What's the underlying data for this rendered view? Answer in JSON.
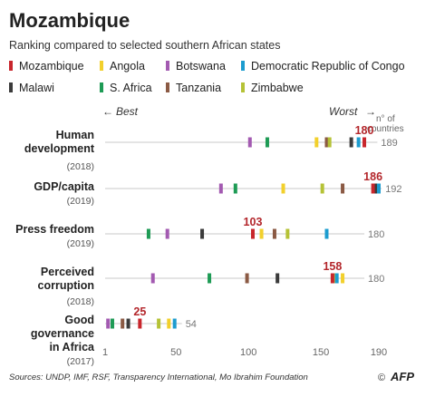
{
  "title": "Mozambique",
  "subtitle": "Ranking compared to selected southern African states",
  "source": "Sources: UNDP, IMF, RSF, Transparency International, Mo Ibrahim Foundation",
  "credit": "AFP",
  "axis_labels": {
    "best": "Best",
    "worst": "Worst",
    "count_label_1": "n° of",
    "count_label_2": "countries"
  },
  "chart_data": {
    "type": "scatter",
    "title": "Mozambique",
    "subtitle": "Ranking compared to selected southern African states",
    "x_ticks": [
      "1",
      "50",
      "100",
      "150",
      "190"
    ],
    "xlim": [
      1,
      190
    ],
    "grid": false,
    "legend_position": "top",
    "countries": [
      {
        "name": "Mozambique",
        "color": "#c8262c"
      },
      {
        "name": "Angola",
        "color": "#f2d02c"
      },
      {
        "name": "Botswana",
        "color": "#a35ab1"
      },
      {
        "name": "Democratic Republic of Congo",
        "color": "#1c9ccf"
      },
      {
        "name": "Malawi",
        "color": "#3b3b3b"
      },
      {
        "name": "S. Africa",
        "color": "#1e9b55"
      },
      {
        "name": "Tanzania",
        "color": "#8b5a44"
      },
      {
        "name": "Zimbabwe",
        "color": "#b5c236"
      }
    ],
    "indicators": [
      {
        "label_lines": [
          "Human",
          "development"
        ],
        "year": "(2018)",
        "total": 189,
        "highlight": "180",
        "ranks": {
          "Mozambique": 180,
          "Angola": 147,
          "Botswana": 101,
          "Democratic Republic of Congo": 176,
          "Malawi": 171,
          "S. Africa": 113,
          "Tanzania": 154,
          "Zimbabwe": 156
        }
      },
      {
        "label_lines": [
          "GDP/capita"
        ],
        "year": "(2019)",
        "total": 192,
        "highlight": "186",
        "ranks": {
          "Mozambique": 186,
          "Angola": 124,
          "Botswana": 81,
          "Democratic Republic of Congo": 190,
          "Malawi": 188,
          "S. Africa": 91,
          "Tanzania": 165,
          "Zimbabwe": 151
        }
      },
      {
        "label_lines": [
          "Press freedom"
        ],
        "year": "(2019)",
        "total": 180,
        "highlight": "103",
        "ranks": {
          "Mozambique": 103,
          "Angola": 109,
          "Botswana": 44,
          "Democratic Republic of Congo": 154,
          "Malawi": 68,
          "S. Africa": 31,
          "Tanzania": 118,
          "Zimbabwe": 127
        }
      },
      {
        "label_lines": [
          "Perceived",
          "corruption"
        ],
        "year": "(2018)",
        "total": 180,
        "highlight": "158",
        "ranks": {
          "Mozambique": 158,
          "Angola": 165,
          "Botswana": 34,
          "Democratic Republic of Congo": 161,
          "Malawi": 120,
          "S. Africa": 73,
          "Tanzania": 99,
          "Zimbabwe": 160
        }
      },
      {
        "label_lines": [
          "Good",
          "governance",
          "in Africa"
        ],
        "year": "(2017)",
        "total": 54,
        "highlight": "25",
        "ranks": {
          "Mozambique": 25,
          "Angola": 45,
          "Botswana": 3,
          "Democratic Republic of Congo": 49,
          "Malawi": 17,
          "S. Africa": 6,
          "Tanzania": 13,
          "Zimbabwe": 38
        }
      }
    ]
  }
}
